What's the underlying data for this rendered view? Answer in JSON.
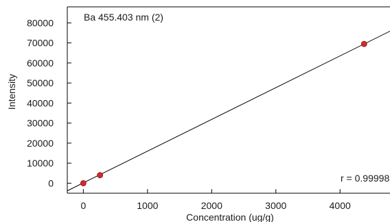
{
  "chart_data": {
    "type": "scatter",
    "title": "Ba 455.403 nm (2)",
    "xlabel": "Concentration (ug/g)",
    "ylabel": "Intensity",
    "xlim": [
      -250,
      4800
    ],
    "ylim": [
      -5000,
      88000
    ],
    "x_ticks": [
      0,
      1000,
      2000,
      3000,
      4000
    ],
    "y_ticks": [
      0,
      10000,
      20000,
      30000,
      40000,
      50000,
      60000,
      70000,
      80000
    ],
    "series": [
      {
        "points": [
          {
            "x": 0,
            "y": 0
          },
          {
            "x": 260,
            "y": 4000
          },
          {
            "x": 4375,
            "y": 69500
          }
        ]
      }
    ],
    "fit_line": {
      "x": [
        -250,
        4800
      ],
      "y": [
        -3800,
        76200
      ]
    },
    "annotation": "r = 0.99998",
    "grid": false,
    "colors": {
      "point": "#d42a2a",
      "line": "#000000",
      "axis": "#000000"
    }
  }
}
